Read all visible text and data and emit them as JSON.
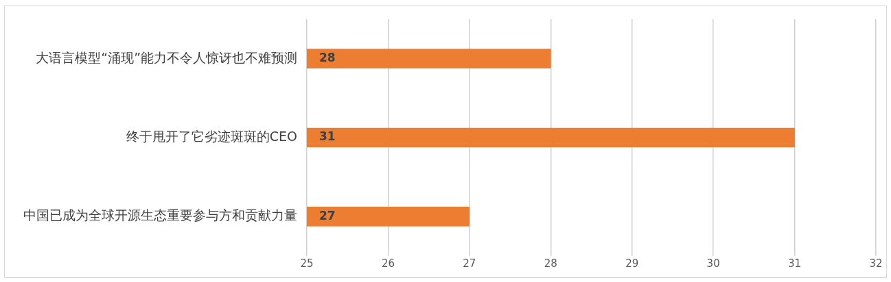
{
  "chart_data": {
    "type": "bar",
    "orientation": "horizontal",
    "categories": [
      "大语言模型“涌现”能力不令人惊讶也不难预测",
      "终于甩开了它劣迹斑斑的CEO",
      "中国已成为全球开源生态重要参与方和贡献力量"
    ],
    "values": [
      28,
      31,
      27
    ],
    "color": "#ed7d31",
    "xlim": [
      25,
      32
    ],
    "xticks": [
      25,
      26,
      27,
      28,
      29,
      30,
      31,
      32
    ],
    "grid": "x",
    "data_labels": true
  }
}
